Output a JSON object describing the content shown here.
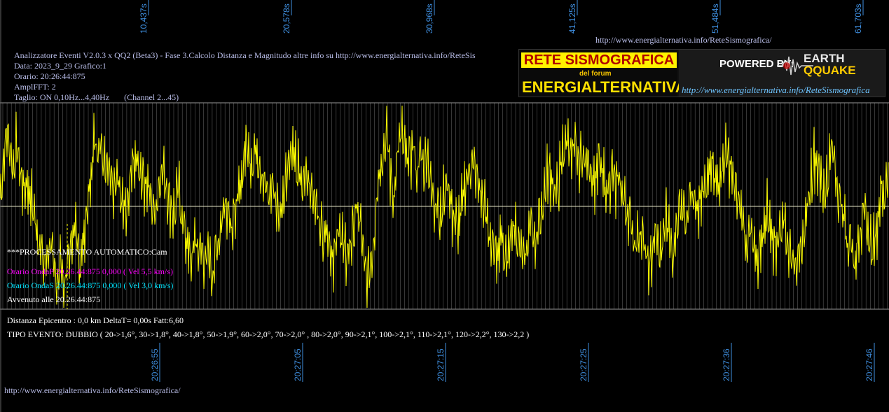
{
  "header": {
    "title": "Analizzatore Eventi V2.0.3 x QQ2 (Beta3) - Fase 3.Calcolo Distanza e Magnitudo altre info su http://www.energialternativa.info/ReteSis",
    "data": "Data: 2023_9_29 Grafico:1",
    "orario": "Orario: 20:26:44:875",
    "ampl": "AmplFFT: 2",
    "taglio": "Taglio: ON 0,10Hz...4,40Hz       (Channel 2...45)"
  },
  "links": {
    "top_url": "http://www.energialternativa.info/ReteSismografica/",
    "bottom_url": "http://www.energialternativa.info/ReteSismografica/"
  },
  "logo": {
    "title": "RETE SISMOGRAFICA",
    "subtitle": "del forum",
    "main": "ENERGIALTERNATIVA",
    "powered": "POWERED BY:",
    "brand_top": "EARTH",
    "brand_bottom": "QQUAKE",
    "url": "http://www.energialternativa.info/ReteSismografica"
  },
  "info": {
    "processing": "***PROCESSAMENTO AUTOMATICO:Cam",
    "onda_p": "Orario OndaP 20.26.44:875  0,000 ( Vel 5,5 km/s)",
    "onda_s": "Orario OndaS 20.26.44:875  0,000 ( Vel 3,0 km/s)",
    "avvenuto": "Avvenuto alle 20.26.44:875",
    "distanza": "Distanza Epicentro : 0,0 km DeltaT= 0,00s  Fatt:6,60",
    "tipo": "TIPO EVENTO: DUBBIO ( 20->1,6°, 30->1,8°, 40->1,8°, 50->1,9°, 60->2,0°, 70->2,0° , 80->2,0°, 90->2,1°, 100->2,1°, 110->2,1°, 120->2,2°, 130->2,2 )"
  },
  "colors": {
    "background": "#000000",
    "trace": "#ffff00",
    "grid": "#808080",
    "axis_labels": "#3f8fe0",
    "header_text": "#b9bde8",
    "onda_p": "#ff00ff",
    "onda_s": "#00e5ff",
    "white_text": "#ffffff"
  },
  "chart_data": {
    "type": "line",
    "top_axis_ticks": [
      "10,437s",
      "20,578s",
      "30,968s",
      "41,125s",
      "51,484s",
      "61,703s"
    ],
    "bottom_axis_ticks": [
      "20:26:55",
      "20:27:05",
      "20:27:15",
      "20:27:25",
      "20:27:36",
      "20:27:46"
    ],
    "series": [
      {
        "values": [
          0.1,
          0.5,
          0.9,
          0.7,
          0.45,
          0.75,
          0.4,
          0.2,
          0.3,
          0.1,
          -0.05,
          -0.3,
          -0.5,
          -0.7,
          -0.6,
          -0.4,
          -0.8,
          -0.9,
          -0.6,
          -1.0,
          -0.7,
          -0.5,
          -0.2,
          -0.4,
          -0.7,
          -0.3,
          0.1,
          0.35,
          0.95,
          0.6,
          0.7,
          0.55,
          0.6,
          0.3,
          0.15,
          0.3,
          0.0,
          -0.1,
          0.0,
          0.4,
          0.55,
          0.5,
          0.4,
          0.3,
          0.25,
          0.05,
          -0.1,
          0.2,
          0.45,
          0.35,
          0.1,
          0.0,
          -0.1,
          0.25,
          -0.1,
          -0.3,
          -0.55,
          -0.7,
          -0.3,
          -0.6,
          -0.45,
          -0.75,
          -0.5,
          -0.85,
          -0.6,
          -0.4,
          -0.1,
          0.05,
          0.0,
          -0.25,
          -0.05,
          0.1,
          0.4,
          0.75,
          0.65,
          0.5,
          0.7,
          0.55,
          0.35,
          0.2,
          0.1,
          0.3,
          0.05,
          -0.15,
          0.1,
          0.35,
          0.6,
          0.65,
          0.45,
          0.35,
          0.2,
          0.45,
          0.3,
          0.1,
          0.0,
          -0.15,
          -0.35,
          -0.2,
          -0.45,
          -0.6,
          -0.5,
          -0.2,
          -0.5,
          -0.6,
          -0.45,
          -0.3,
          -0.05,
          -0.2,
          -0.6,
          -0.9,
          -0.7,
          -0.45,
          0.2,
          0.5,
          0.65,
          0.85,
          0.4,
          0.1,
          0.55,
          0.85,
          0.7,
          0.6,
          0.55,
          0.75,
          0.3,
          0.7,
          0.45,
          0.65,
          0.25,
          0.0,
          0.15,
          -0.2,
          0.15,
          0.35,
          0.0,
          -0.15,
          -0.3,
          -0.1,
          0.25,
          0.35,
          0.55,
          0.45,
          0.3,
          0.1,
          -0.05,
          -0.2,
          -0.45,
          -0.6,
          -0.5,
          -0.3,
          -0.65,
          -0.55,
          -0.3,
          -0.15,
          -0.4,
          -0.5,
          -0.7,
          -0.4,
          -0.2,
          -0.45,
          -0.2,
          -0.05,
          0.2,
          0.4,
          0.35,
          0.1,
          0.25,
          0.55,
          0.75,
          0.8,
          0.55,
          0.7,
          0.45,
          0.65,
          0.5,
          0.6,
          0.35,
          0.3,
          0.55,
          0.35,
          0.15,
          0.3,
          0.45,
          0.2,
          0.3,
          0.15,
          -0.05,
          -0.1,
          -0.3,
          -0.45,
          -0.25,
          -0.4,
          -0.6,
          -0.8,
          -0.5,
          -0.3,
          -0.6,
          -0.4,
          -0.15,
          -0.35,
          -0.6,
          -0.3,
          0.1,
          0.0,
          -0.1,
          0.2,
          0.05,
          -0.1,
          0.0,
          0.15,
          0.35,
          0.55,
          0.45,
          0.25,
          0.3,
          0.5,
          0.6,
          0.45,
          0.3,
          0.1,
          0.0,
          -0.2,
          -0.5,
          -0.3,
          -0.55,
          -0.7,
          -0.4,
          -0.3,
          -0.05,
          -0.25,
          -0.45,
          -0.35,
          -0.25,
          -0.1,
          -0.45,
          -0.6,
          -0.5,
          -0.8,
          -0.55,
          -0.3,
          0.0,
          0.3,
          0.6,
          0.5,
          0.3,
          0.15,
          0.3,
          0.7,
          0.55,
          0.2,
          0.0,
          -0.15,
          -0.55,
          -0.3,
          -0.7,
          -0.45,
          -0.2,
          0.05,
          -0.35,
          -0.6,
          -0.4,
          -0.1,
          0.25,
          0.1,
          0.35
        ]
      }
    ],
    "ylim": [
      -1.2,
      1.2
    ],
    "grid": true
  }
}
